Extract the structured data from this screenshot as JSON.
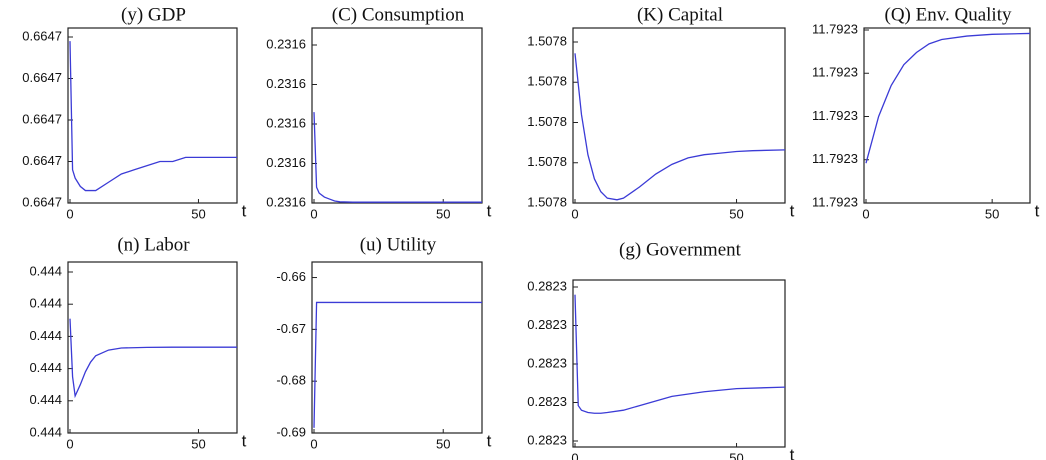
{
  "chart_data": [
    {
      "type": "line",
      "title": "(y) GDP",
      "x_label": "t",
      "xlim": [
        0,
        65
      ],
      "xticks": [
        0,
        50
      ],
      "ylim": [
        0.66468,
        0.66472
      ],
      "yticks": [
        {
          "value": 0.66468,
          "label": "0.6647"
        },
        {
          "value": 0.66469,
          "label": "0.6647"
        },
        {
          "value": 0.6647,
          "label": "0.6647"
        },
        {
          "value": 0.66471,
          "label": "0.6647"
        },
        {
          "value": 0.66472,
          "label": "0.6647"
        }
      ],
      "color": "#3b3bd6",
      "x": [
        0,
        1,
        2,
        4,
        6,
        8,
        10,
        15,
        20,
        25,
        30,
        35,
        40,
        45,
        50,
        55,
        65
      ],
      "values": [
        0.664719,
        0.664688,
        0.664686,
        0.664684,
        0.664683,
        0.664683,
        0.664683,
        0.664685,
        0.664687,
        0.664688,
        0.664689,
        0.66469,
        0.66469,
        0.664691,
        0.664691,
        0.664691,
        0.664691
      ]
    },
    {
      "type": "line",
      "title": "(C) Consumption",
      "x_label": "t",
      "xlim": [
        0,
        65
      ],
      "xticks": [
        0,
        50
      ],
      "ylim": [
        0.23156,
        0.2316
      ],
      "yticks": [
        {
          "value": 0.23156,
          "label": "0.2316"
        },
        {
          "value": 0.23157,
          "label": "0.2316"
        },
        {
          "value": 0.23158,
          "label": "0.2316"
        },
        {
          "value": 0.23159,
          "label": "0.2316"
        },
        {
          "value": 0.2316,
          "label": "0.2316"
        }
      ],
      "color": "#3b3bd6",
      "x": [
        0,
        1,
        2,
        4,
        6,
        8,
        10,
        15,
        20,
        25,
        30,
        35,
        40,
        45,
        50,
        55,
        65
      ],
      "values": [
        0.231583,
        0.231564,
        0.2315625,
        0.2315615,
        0.231561,
        0.2315605,
        0.2315603,
        0.2315602,
        0.2315602,
        0.2315602,
        0.2315602,
        0.2315602,
        0.2315602,
        0.2315602,
        0.2315602,
        0.2315602,
        0.2315602
      ]
    },
    {
      "type": "line",
      "title": "(K) Capital",
      "x_label": "t",
      "xlim": [
        0,
        65
      ],
      "xticks": [
        0,
        50
      ],
      "ylim": [
        1.50776,
        1.5078
      ],
      "yticks": [
        {
          "value": 1.50776,
          "label": "1.5078"
        },
        {
          "value": 1.50777,
          "label": "1.5078"
        },
        {
          "value": 1.50778,
          "label": "1.5078"
        },
        {
          "value": 1.50779,
          "label": "1.5078"
        },
        {
          "value": 1.5078,
          "label": "1.5078"
        }
      ],
      "color": "#3b3bd6",
      "x": [
        0,
        2,
        4,
        6,
        8,
        10,
        13,
        15,
        20,
        25,
        30,
        35,
        40,
        45,
        50,
        55,
        65
      ],
      "values": [
        1.5077972,
        1.507782,
        1.507772,
        1.507766,
        1.5077628,
        1.5077612,
        1.5077608,
        1.5077612,
        1.507764,
        1.5077672,
        1.5077696,
        1.5077712,
        1.507772,
        1.5077724,
        1.5077728,
        1.507773,
        1.5077732
      ]
    },
    {
      "type": "line",
      "title": "(Q) Env. Quality",
      "x_label": "t",
      "xlim": [
        0,
        65
      ],
      "xticks": [
        0,
        50
      ],
      "ylim": [
        11.79226,
        11.7923
      ],
      "yticks": [
        {
          "value": 11.79226,
          "label": "11.7923"
        },
        {
          "value": 11.79227,
          "label": "11.7923"
        },
        {
          "value": 11.79228,
          "label": "11.7923"
        },
        {
          "value": 11.79229,
          "label": "11.7923"
        },
        {
          "value": 11.7923,
          "label": "11.7923"
        }
      ],
      "color": "#3b3bd6",
      "x": [
        0,
        5,
        10,
        15,
        20,
        25,
        30,
        40,
        50,
        65
      ],
      "values": [
        11.7922692,
        11.79228,
        11.7922872,
        11.792292,
        11.7922948,
        11.7922968,
        11.7922978,
        11.7922986,
        11.792299,
        11.7922992
      ]
    },
    {
      "type": "line",
      "title": "(n) Labor",
      "x_label": "t",
      "xlim": [
        0,
        65
      ],
      "xticks": [
        0,
        50
      ],
      "ylim": [
        0.44395,
        0.44405
      ],
      "yticks": [
        {
          "value": 0.44395,
          "label": "0.444"
        },
        {
          "value": 0.44397,
          "label": "0.444"
        },
        {
          "value": 0.44399,
          "label": "0.444"
        },
        {
          "value": 0.44401,
          "label": "0.444"
        },
        {
          "value": 0.44403,
          "label": "0.444"
        },
        {
          "value": 0.44405,
          "label": "0.444"
        }
      ],
      "color": "#3b3bd6",
      "x": [
        0,
        1,
        2,
        4,
        6,
        8,
        10,
        15,
        20,
        30,
        40,
        65
      ],
      "values": [
        0.444021,
        0.443985,
        0.443973,
        0.44398,
        0.443988,
        0.443994,
        0.443998,
        0.4440015,
        0.4440028,
        0.4440032,
        0.4440033,
        0.4440033
      ]
    },
    {
      "type": "line",
      "title": "(u) Utility",
      "x_label": "t",
      "xlim": [
        0,
        65
      ],
      "xticks": [
        0,
        50
      ],
      "ylim": [
        -0.69,
        -0.657
      ],
      "yticks": [
        -0.69,
        -0.68,
        -0.67,
        -0.66
      ],
      "color": "#3b3bd6",
      "x": [
        0,
        1,
        2,
        65
      ],
      "values": [
        -0.689,
        -0.6648,
        -0.6648,
        -0.6648
      ]
    },
    {
      "type": "line",
      "title": "(g) Government",
      "x_label": "t",
      "xlim": [
        0,
        65
      ],
      "xticks": [
        0,
        50
      ],
      "ylim": [
        0.28226,
        0.2823
      ],
      "yticks": [
        {
          "value": 0.28226,
          "label": "0.2823"
        },
        {
          "value": 0.28227,
          "label": "0.2823"
        },
        {
          "value": 0.28228,
          "label": "0.2823"
        },
        {
          "value": 0.28229,
          "label": "0.2823"
        },
        {
          "value": 0.2823,
          "label": "0.2823"
        }
      ],
      "color": "#3b3bd6",
      "x": [
        0,
        1,
        2,
        4,
        6,
        8,
        10,
        15,
        20,
        25,
        30,
        40,
        50,
        65
      ],
      "values": [
        0.282298,
        0.2822692,
        0.282268,
        0.2822674,
        0.2822672,
        0.2822672,
        0.2822674,
        0.282268,
        0.2822692,
        0.2822704,
        0.2822716,
        0.2822728,
        0.2822736,
        0.282274
      ]
    }
  ]
}
